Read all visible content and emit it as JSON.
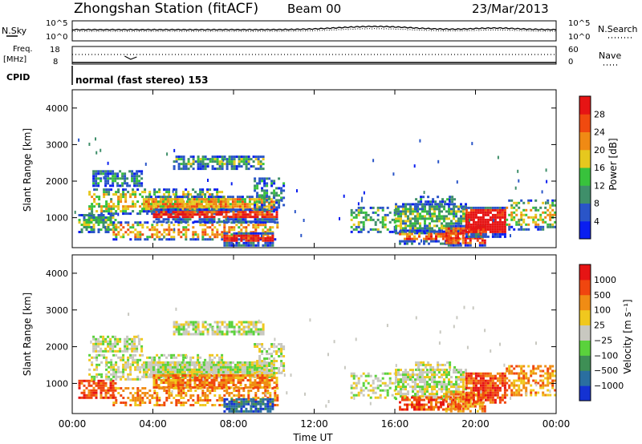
{
  "header": {
    "title": "Zhongshan Station (fitACF)",
    "beam": "Beam 00",
    "date": "23/Mar/2013"
  },
  "sky_panel": {
    "left_label": "N.Sky",
    "right_label": "N.Search",
    "left_ticks": [
      "10^5",
      "10^0"
    ],
    "right_ticks": [
      "10^5",
      "10^0"
    ]
  },
  "freq_panel": {
    "left_label_1": "Freq.",
    "left_label_2": "[MHz]",
    "right_label": "Nave",
    "left_ticks": [
      "18",
      "8"
    ],
    "right_ticks": [
      "60",
      "0"
    ]
  },
  "cpid": {
    "label": "CPID",
    "mode": "normal (fast stereo) 153"
  },
  "chart_data": [
    {
      "type": "heatmap",
      "name": "power",
      "ylabel": "Slant Range [km]",
      "yticks": [
        "1000",
        "2000",
        "3000",
        "4000"
      ],
      "ylim": [
        180,
        4500
      ],
      "colorbar_label": "Power [dB]",
      "colorbar_ticks": [
        "4",
        "8",
        "12",
        "16",
        "20",
        "24",
        "28"
      ],
      "colors": [
        "#0a1ef0",
        "#2a55c8",
        "#3f8f6a",
        "#38c23c",
        "#e6c81e",
        "#f08a14",
        "#f04a0f",
        "#e61414"
      ]
    },
    {
      "type": "heatmap",
      "name": "velocity",
      "ylabel": "Slant Range [km]",
      "yticks": [
        "1000",
        "2000",
        "3000",
        "4000"
      ],
      "ylim": [
        180,
        4500
      ],
      "colorbar_label": "Velocity [m s⁻¹]",
      "colorbar_ticks": [
        "1000",
        "500",
        "100",
        "25",
        "−25",
        "−100",
        "−500",
        "−1000"
      ],
      "colors": [
        "#1432d2",
        "#2a6fa0",
        "#3e8f55",
        "#5ad23c",
        "#c8c8c0",
        "#f0c81e",
        "#f08c14",
        "#f0460f",
        "#e61414"
      ]
    }
  ],
  "xaxis": {
    "label": "Time UT",
    "ticks": [
      "00:00",
      "04:00",
      "08:00",
      "12:00",
      "16:00",
      "20:00",
      "00:00"
    ]
  }
}
